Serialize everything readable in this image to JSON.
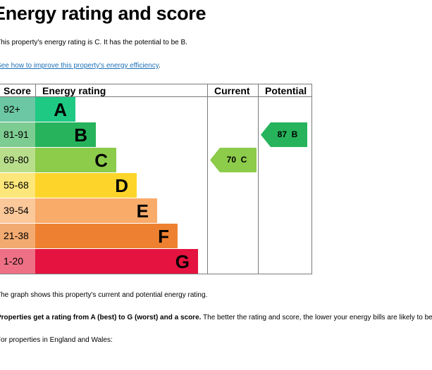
{
  "heading": "Energy rating and score",
  "intro": "This property's energy rating is C. It has the potential to be B.",
  "improve_link": "See how to improve this property's energy efficiency",
  "improve_suffix": ".",
  "table": {
    "headers": {
      "score": "Score",
      "rating": "Energy rating",
      "current": "Current",
      "potential": "Potential"
    },
    "bands": [
      {
        "range": "92+",
        "letter": "A",
        "bar_color": "#008054",
        "score_color": "#1bb979",
        "bar_fill": "#1ec984",
        "score_fill": "#6cc7a4"
      },
      {
        "range": "81-91",
        "letter": "B",
        "bar_color": "#19b459",
        "score_color": "#58c48a",
        "bar_fill": "#27b35b",
        "score_fill": "#7dcc91"
      },
      {
        "range": "69-80",
        "letter": "C",
        "bar_color": "#8dce46",
        "score_color": "#b3dd86",
        "bar_fill": "#8dcb4b",
        "score_fill": "#b8de8c"
      },
      {
        "range": "55-68",
        "letter": "D",
        "bar_color": "#ffd500",
        "score_color": "#ffe45f",
        "bar_fill": "#fdd52a",
        "score_fill": "#fde67a"
      },
      {
        "range": "39-54",
        "letter": "E",
        "bar_color": "#fcaa65",
        "score_color": "#fdc592",
        "bar_fill": "#f9ab6a",
        "score_fill": "#fbc89a"
      },
      {
        "range": "21-38",
        "letter": "F",
        "bar_color": "#ef8023",
        "score_color": "#f3a866",
        "bar_fill": "#ee8131",
        "score_fill": "#f3aa70"
      },
      {
        "range": "1-20",
        "letter": "G",
        "bar_color": "#e9153b",
        "score_color": "#f0667f",
        "bar_fill": "#e5133f",
        "score_fill": "#ee7085"
      }
    ],
    "current": {
      "score": "70",
      "letter": "C",
      "color": "#8dcb4b"
    },
    "potential": {
      "score": "87",
      "letter": "B",
      "color": "#27b35b"
    }
  },
  "graph_caption": "The graph shows this property's current and potential energy rating.",
  "rating_note_bold": "Properties get a rating from A (best) to G (worst) and a score.",
  "rating_note_rest": " The better the rating and score, the lower your energy bills are likely to be.",
  "regional_note": "For properties in England and Wales:"
}
